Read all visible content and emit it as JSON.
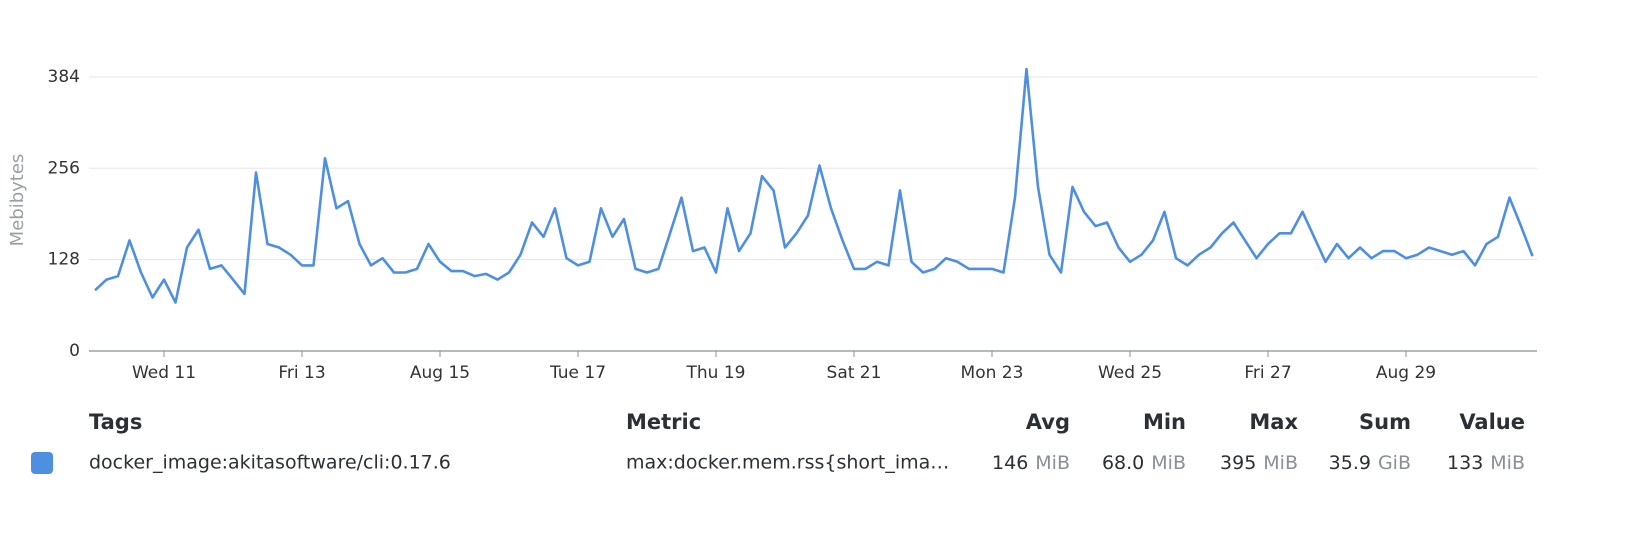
{
  "chart_data": {
    "type": "line",
    "y_label": "Mebibytes",
    "categories": [
      null,
      null,
      null,
      null,
      null,
      null,
      "Wed 11",
      null,
      null,
      null,
      null,
      null,
      null,
      null,
      null,
      null,
      null,
      null,
      "Fri 13",
      null,
      null,
      null,
      null,
      null,
      null,
      null,
      null,
      null,
      null,
      null,
      "Aug 15",
      null,
      null,
      null,
      null,
      null,
      null,
      null,
      null,
      null,
      null,
      null,
      "Tue 17",
      null,
      null,
      null,
      null,
      null,
      null,
      null,
      null,
      null,
      null,
      null,
      "Thu 19",
      null,
      null,
      null,
      null,
      null,
      null,
      null,
      null,
      null,
      null,
      null,
      "Sat 21",
      null,
      null,
      null,
      null,
      null,
      null,
      null,
      null,
      null,
      null,
      null,
      "Mon 23",
      null,
      null,
      null,
      null,
      null,
      null,
      null,
      null,
      null,
      null,
      null,
      "Wed 25",
      null,
      null,
      null,
      null,
      null,
      null,
      null,
      null,
      null,
      null,
      null,
      "Fri 27",
      null,
      null,
      null,
      null,
      null,
      null,
      null,
      null,
      null,
      null,
      null,
      "Aug 29",
      null,
      null,
      null,
      null,
      null,
      null,
      null,
      null,
      null,
      null,
      null
    ],
    "series": [
      {
        "name": "docker_image:akitasoftware/cli:0.17.6",
        "color": "#4f8fe0",
        "values": [
          85,
          100,
          105,
          155,
          110,
          75,
          100,
          68,
          145,
          170,
          115,
          120,
          100,
          80,
          250,
          150,
          145,
          135,
          120,
          120,
          270,
          200,
          210,
          150,
          120,
          130,
          110,
          110,
          115,
          150,
          125,
          112,
          112,
          105,
          108,
          100,
          110,
          135,
          180,
          160,
          200,
          130,
          120,
          125,
          200,
          160,
          185,
          115,
          110,
          115,
          165,
          215,
          140,
          145,
          110,
          200,
          140,
          165,
          245,
          225,
          145,
          165,
          190,
          260,
          200,
          155,
          115,
          115,
          125,
          120,
          225,
          125,
          110,
          115,
          130,
          125,
          115,
          115,
          115,
          110,
          215,
          395,
          230,
          135,
          110,
          230,
          195,
          175,
          180,
          145,
          125,
          135,
          155,
          195,
          130,
          120,
          135,
          145,
          165,
          180,
          155,
          130,
          150,
          165,
          165,
          195,
          160,
          125,
          150,
          130,
          145,
          130,
          140,
          140,
          130,
          135,
          145,
          140,
          135,
          140,
          120,
          150,
          160,
          215,
          175,
          133
        ]
      }
    ],
    "ylim": [
      0,
      440
    ],
    "yticks": [
      0,
      128,
      256,
      384
    ],
    "grid": true
  },
  "legend_table": {
    "columns": [
      "Tags",
      "Metric",
      "Avg",
      "Min",
      "Max",
      "Sum",
      "Value"
    ],
    "rows": [
      {
        "tag": "docker_image:akitasoftware/cli:0.17.6",
        "metric": "max:docker.mem.rss{short_ima…",
        "stats": [
          {
            "value": "146",
            "unit": "MiB"
          },
          {
            "value": "68.0",
            "unit": "MiB"
          },
          {
            "value": "395",
            "unit": "MiB"
          },
          {
            "value": "35.9",
            "unit": "GiB"
          },
          {
            "value": "133",
            "unit": "MiB"
          }
        ]
      }
    ]
  }
}
